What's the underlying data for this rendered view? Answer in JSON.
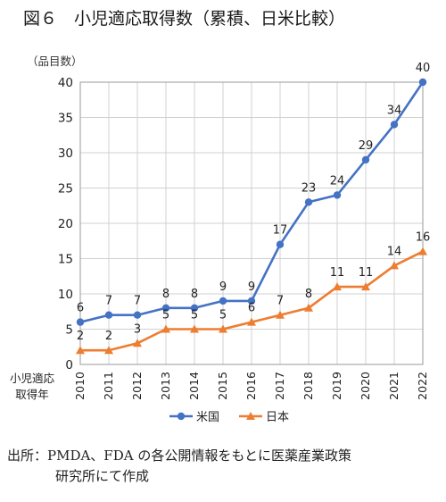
{
  "title": "図６　小児適応取得数（累積、日米比較）",
  "source_line1": "出所：PMDA、FDA の各公開情報をもとに医薬産業政策",
  "source_line2": "研究所にて作成",
  "chart_data": {
    "type": "line",
    "ylabel": "（品目数）",
    "xlabel": [
      "小児適応",
      "取得年"
    ],
    "ylim": [
      0,
      40
    ],
    "yticks": [
      0,
      5,
      10,
      15,
      20,
      25,
      30,
      35,
      40
    ],
    "grid": true,
    "legend_position": "bottom",
    "categories": [
      "2010",
      "2011",
      "2012",
      "2013",
      "2014",
      "2015",
      "2016",
      "2017",
      "2018",
      "2019",
      "2020",
      "2021",
      "2022"
    ],
    "series": [
      {
        "name": "米国",
        "color": "#4472c4",
        "marker": "circle",
        "values": [
          6,
          7,
          7,
          8,
          8,
          9,
          9,
          17,
          23,
          24,
          29,
          34,
          40
        ]
      },
      {
        "name": "日本",
        "color": "#ed7d31",
        "marker": "triangle",
        "values": [
          2,
          2,
          3,
          5,
          5,
          5,
          6,
          7,
          8,
          11,
          11,
          14,
          16
        ]
      }
    ]
  }
}
